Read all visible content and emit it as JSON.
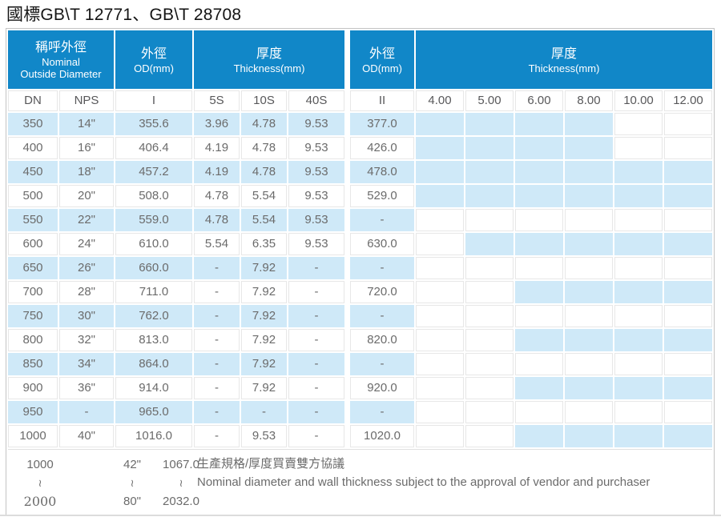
{
  "title": "國標GB\\T 12771、GB\\T 28708",
  "colors": {
    "header_blue": "#1187c8",
    "stripe_blue": "#cfe9f8",
    "grid_gray": "#e7e7e7",
    "outer_border": "#c3c3c3",
    "text_gray": "#6b6b6b"
  },
  "table": {
    "header_groups": [
      {
        "zh": "稱呼外徑",
        "en_lines": [
          "Nominal",
          "Outside Diameter"
        ],
        "cols": 2
      },
      {
        "zh": "外徑",
        "en_lines": [
          "OD(mm)"
        ],
        "cols": 1
      },
      {
        "zh": "厚度",
        "en_lines": [
          "Thickness(mm)"
        ],
        "cols": 3
      },
      {
        "zh": "外徑",
        "en_lines": [
          "OD(mm)"
        ],
        "cols": 1
      },
      {
        "zh": "厚度",
        "en_lines": [
          "Thickness(mm)"
        ],
        "cols": 6
      }
    ],
    "subheader": [
      "DN",
      "NPS",
      "I",
      "5S",
      "10S",
      "40S",
      "II",
      "4.00",
      "5.00",
      "6.00",
      "8.00",
      "10.00",
      "12.00"
    ],
    "rows": [
      {
        "cells": [
          "350",
          "14\"",
          "355.6",
          "3.96",
          "4.78",
          "9.53",
          "377.0"
        ],
        "avail": [
          true,
          true,
          true,
          true,
          false,
          false
        ]
      },
      {
        "cells": [
          "400",
          "16\"",
          "406.4",
          "4.19",
          "4.78",
          "9.53",
          "426.0"
        ],
        "avail": [
          true,
          true,
          true,
          true,
          false,
          false
        ]
      },
      {
        "cells": [
          "450",
          "18\"",
          "457.2",
          "4.19",
          "4.78",
          "9.53",
          "478.0"
        ],
        "avail": [
          true,
          true,
          true,
          true,
          true,
          true
        ]
      },
      {
        "cells": [
          "500",
          "20\"",
          "508.0",
          "4.78",
          "5.54",
          "9.53",
          "529.0"
        ],
        "avail": [
          true,
          true,
          true,
          true,
          true,
          true
        ]
      },
      {
        "cells": [
          "550",
          "22\"",
          "559.0",
          "4.78",
          "5.54",
          "9.53",
          "-"
        ],
        "avail": [
          false,
          false,
          false,
          false,
          false,
          false
        ]
      },
      {
        "cells": [
          "600",
          "24\"",
          "610.0",
          "5.54",
          "6.35",
          "9.53",
          "630.0"
        ],
        "avail": [
          false,
          true,
          true,
          true,
          true,
          true
        ]
      },
      {
        "cells": [
          "650",
          "26\"",
          "660.0",
          "-",
          "7.92",
          "-",
          "-"
        ],
        "avail": [
          false,
          false,
          false,
          false,
          false,
          false
        ]
      },
      {
        "cells": [
          "700",
          "28\"",
          "711.0",
          "-",
          "7.92",
          "-",
          "720.0"
        ],
        "avail": [
          false,
          false,
          true,
          true,
          true,
          true
        ]
      },
      {
        "cells": [
          "750",
          "30\"",
          "762.0",
          "-",
          "7.92",
          "-",
          "-"
        ],
        "avail": [
          false,
          false,
          false,
          false,
          false,
          false
        ]
      },
      {
        "cells": [
          "800",
          "32\"",
          "813.0",
          "-",
          "7.92",
          "-",
          "820.0"
        ],
        "avail": [
          false,
          false,
          true,
          true,
          true,
          true
        ]
      },
      {
        "cells": [
          "850",
          "34\"",
          "864.0",
          "-",
          "7.92",
          "-",
          "-"
        ],
        "avail": [
          false,
          false,
          false,
          false,
          false,
          false
        ]
      },
      {
        "cells": [
          "900",
          "36\"",
          "914.0",
          "-",
          "7.92",
          "-",
          "920.0"
        ],
        "avail": [
          false,
          false,
          true,
          true,
          true,
          true
        ]
      },
      {
        "cells": [
          "950",
          "-",
          "965.0",
          "-",
          "-",
          "-",
          "-"
        ],
        "avail": [
          false,
          false,
          false,
          false,
          false,
          false
        ]
      },
      {
        "cells": [
          "1000",
          "40\"",
          "1016.0",
          "-",
          "9.53",
          "-",
          "1020.0"
        ],
        "avail": [
          false,
          false,
          true,
          true,
          true,
          true
        ]
      }
    ],
    "footer": {
      "ranges": [
        {
          "name": "dn",
          "lines": [
            "1000",
            "≀",
            "2000"
          ]
        },
        {
          "name": "nps",
          "lines": [
            "42\"",
            "≀",
            "80\""
          ]
        },
        {
          "name": "od",
          "lines": [
            "1067.0",
            "≀",
            "2032.0"
          ]
        }
      ],
      "note_zh": "生產規格/厚度買賣雙方協議",
      "note_en": "Nominal diameter and wall thickness subject to the approval of vendor and purchaser"
    }
  }
}
